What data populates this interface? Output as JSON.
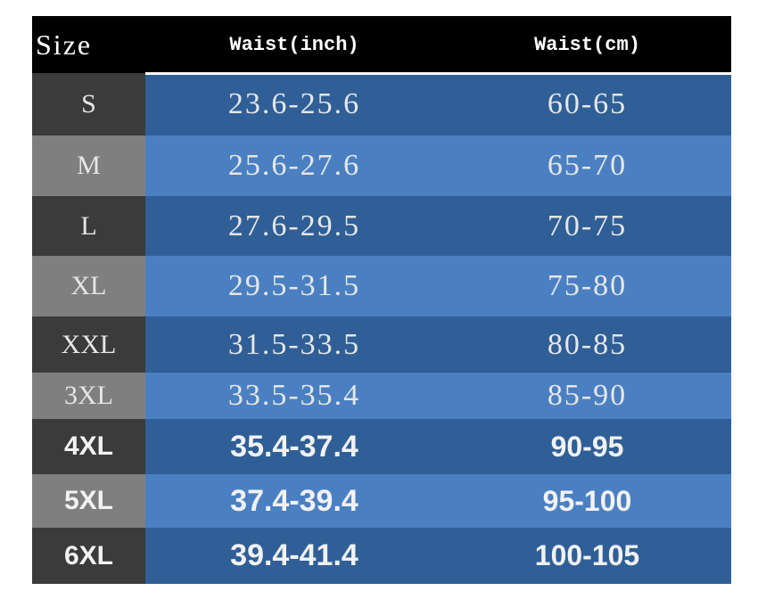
{
  "table": {
    "header": [
      "Size",
      "Waist(inch)",
      "Waist(cm)"
    ],
    "rows": [
      [
        "S",
        "23.6-25.6",
        "60-65"
      ],
      [
        "M",
        "25.6-27.6",
        "65-70"
      ],
      [
        "L",
        "27.6-29.5",
        "70-75"
      ],
      [
        "XL",
        "29.5-31.5",
        "75-80"
      ],
      [
        "XXL",
        "31.5-33.5",
        "80-85"
      ],
      [
        "3XL",
        "33.5-35.4",
        "85-90"
      ],
      [
        "4XL",
        "35.4-37.4",
        "90-95"
      ],
      [
        "5XL",
        "37.4-39.4",
        "95-100"
      ],
      [
        "6XL",
        "39.4-41.4",
        "100-105"
      ]
    ]
  }
}
